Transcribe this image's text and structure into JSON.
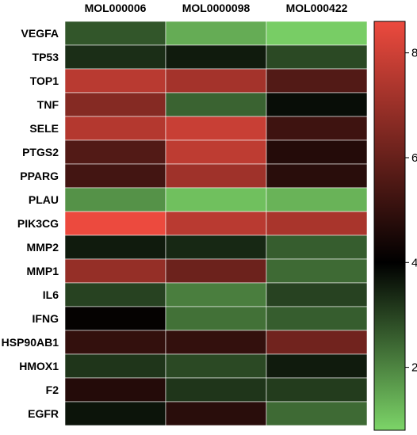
{
  "chart_data": {
    "type": "heatmap",
    "columns": [
      "MOL000006",
      "MOL0000098",
      "MOL000422"
    ],
    "rows": [
      "VEGFA",
      "TP53",
      "TOP1",
      "TNF",
      "SELE",
      "PTGS2",
      "PPARG",
      "PLAU",
      "PIK3CG",
      "MMP2",
      "MMP1",
      "IL6",
      "IFNG",
      "HSP90AB1",
      "HMOX1",
      "F2",
      "EGFR"
    ],
    "values": [
      [
        2.7,
        1.4,
        0.9
      ],
      [
        3.3,
        3.6,
        2.9
      ],
      [
        7.6,
        7.2,
        5.6
      ],
      [
        6.6,
        2.5,
        3.8
      ],
      [
        7.5,
        7.9,
        5.2
      ],
      [
        5.6,
        7.7,
        4.7
      ],
      [
        5.3,
        7.1,
        4.8
      ],
      [
        1.8,
        1.1,
        1.3
      ],
      [
        8.6,
        7.6,
        7.3
      ],
      [
        3.6,
        3.4,
        2.6
      ],
      [
        6.9,
        6.1,
        2.4
      ],
      [
        3.0,
        2.1,
        3.0
      ],
      [
        4.1,
        2.3,
        2.6
      ],
      [
        5.0,
        5.0,
        6.2
      ],
      [
        3.2,
        2.9,
        3.6
      ],
      [
        4.7,
        3.2,
        3.1
      ],
      [
        3.7,
        4.8,
        2.4
      ]
    ],
    "colorbar": {
      "min": 0.8,
      "mid": 4.0,
      "max": 8.6,
      "ticks": [
        2,
        4,
        6,
        8
      ]
    },
    "colors": {
      "low": "#7cd468",
      "mid": "#000000",
      "high": "#ec4a3e"
    },
    "legend_position": "right"
  }
}
